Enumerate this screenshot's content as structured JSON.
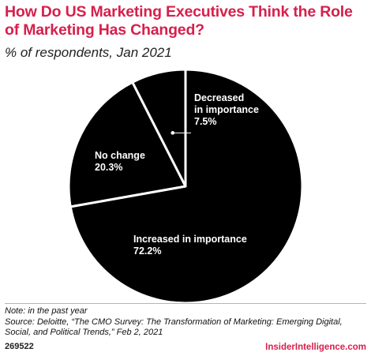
{
  "header": {
    "title": "How Do US Marketing Executives Think the Role of Marketing Has Changed?",
    "subtitle": "% of respondents, Jan 2021"
  },
  "chart_data": {
    "type": "pie",
    "title": "How Do US Marketing Executives Think the Role of Marketing Has Changed?",
    "subtitle": "% of respondents, Jan 2021",
    "slices": [
      {
        "label": "Increased in importance",
        "value": 72.2,
        "value_label": "72.2%"
      },
      {
        "label": "No change",
        "value": 20.3,
        "value_label": "20.3%"
      },
      {
        "label": "Decreased in importance",
        "value": 7.5,
        "value_label": "7.5%"
      }
    ],
    "colors": {
      "slice_fill": "#000000",
      "slice_border": "#ffffff",
      "label_text": "#ffffff"
    }
  },
  "footer": {
    "note": "Note: in the past year",
    "source": "Source: Deloitte, “The CMO Survey: The Transformation of Marketing: Emerging Digital, Social, and Political Trends,” Feb 2, 2021",
    "chart_id": "269522",
    "brand": "InsiderIntelligence.com"
  },
  "colors": {
    "accent": "#d6204c",
    "text": "#222222"
  }
}
